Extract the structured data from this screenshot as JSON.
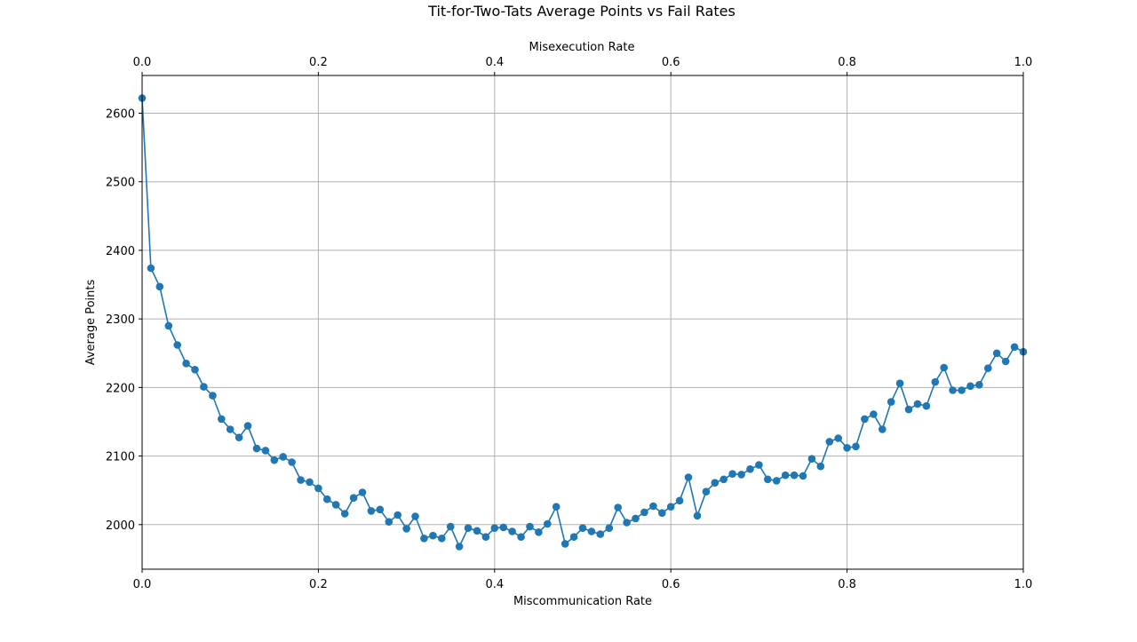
{
  "chart_data": {
    "type": "line",
    "title": "Tit-for-Two-Tats Average Points vs Fail Rates",
    "xlabel": "Miscommunication Rate",
    "x2label": "Misexecution Rate",
    "ylabel": "Average Points",
    "xlim": [
      0.0,
      1.0
    ],
    "ylim": [
      1935,
      2655
    ],
    "grid": true,
    "legend": "none",
    "x_ticks": [
      0.0,
      0.2,
      0.4,
      0.6,
      0.8,
      1.0
    ],
    "x_tick_labels": [
      "0.0",
      "0.2",
      "0.4",
      "0.6",
      "0.8",
      "1.0"
    ],
    "x2_ticks": [
      0.0,
      0.2,
      0.4,
      0.6,
      0.8,
      1.0
    ],
    "x2_tick_labels": [
      "0.0",
      "0.2",
      "0.4",
      "0.6",
      "0.8",
      "1.0"
    ],
    "y_ticks": [
      2000,
      2100,
      2200,
      2300,
      2400,
      2500,
      2600
    ],
    "y_tick_labels": [
      "2000",
      "2100",
      "2200",
      "2300",
      "2400",
      "2500",
      "2600"
    ],
    "series": [
      {
        "color": "#1f77b4",
        "marker": "circle",
        "x": [
          0.0,
          0.01,
          0.02,
          0.03,
          0.04,
          0.05,
          0.06,
          0.07,
          0.08,
          0.09,
          0.1,
          0.11,
          0.12,
          0.13,
          0.14,
          0.15,
          0.16,
          0.17,
          0.18,
          0.19,
          0.2,
          0.21,
          0.22,
          0.23,
          0.24,
          0.25,
          0.26,
          0.27,
          0.28,
          0.29,
          0.3,
          0.31,
          0.32,
          0.33,
          0.34,
          0.35,
          0.36,
          0.37,
          0.38,
          0.39,
          0.4,
          0.41,
          0.42,
          0.43,
          0.44,
          0.45,
          0.46,
          0.47,
          0.48,
          0.49,
          0.5,
          0.51,
          0.52,
          0.53,
          0.54,
          0.55,
          0.56,
          0.57,
          0.58,
          0.59,
          0.6,
          0.61,
          0.62,
          0.63,
          0.64,
          0.65,
          0.66,
          0.67,
          0.68,
          0.69,
          0.7,
          0.71,
          0.72,
          0.73,
          0.74,
          0.75,
          0.76,
          0.77,
          0.78,
          0.79,
          0.8,
          0.81,
          0.82,
          0.83,
          0.84,
          0.85,
          0.86,
          0.87,
          0.88,
          0.89,
          0.9,
          0.91,
          0.92,
          0.93,
          0.94,
          0.95,
          0.96,
          0.97,
          0.98,
          0.99,
          1.0
        ],
        "y": [
          2622,
          2374,
          2347,
          2290,
          2262,
          2235,
          2226,
          2201,
          2188,
          2154,
          2139,
          2127,
          2144,
          2111,
          2108,
          2094,
          2099,
          2091,
          2065,
          2062,
          2053,
          2037,
          2029,
          2016,
          2039,
          2047,
          2020,
          2022,
          2004,
          2014,
          1994,
          2012,
          1980,
          1984,
          1980,
          1997,
          1968,
          1995,
          1991,
          1982,
          1995,
          1996,
          1990,
          1982,
          1997,
          1989,
          2001,
          2026,
          1972,
          1982,
          1995,
          1990,
          1986,
          1995,
          2025,
          2003,
          2009,
          2018,
          2027,
          2017,
          2026,
          2035,
          2069,
          2013,
          2048,
          2061,
          2066,
          2074,
          2073,
          2081,
          2087,
          2066,
          2064,
          2072,
          2072,
          2071,
          2096,
          2085,
          2121,
          2126,
          2112,
          2114,
          2154,
          2161,
          2139,
          2179,
          2206,
          2168,
          2176,
          2173,
          2208,
          2229,
          2196,
          2196,
          2202,
          2204,
          2228,
          2250,
          2238,
          2259,
          2252
        ]
      }
    ]
  }
}
